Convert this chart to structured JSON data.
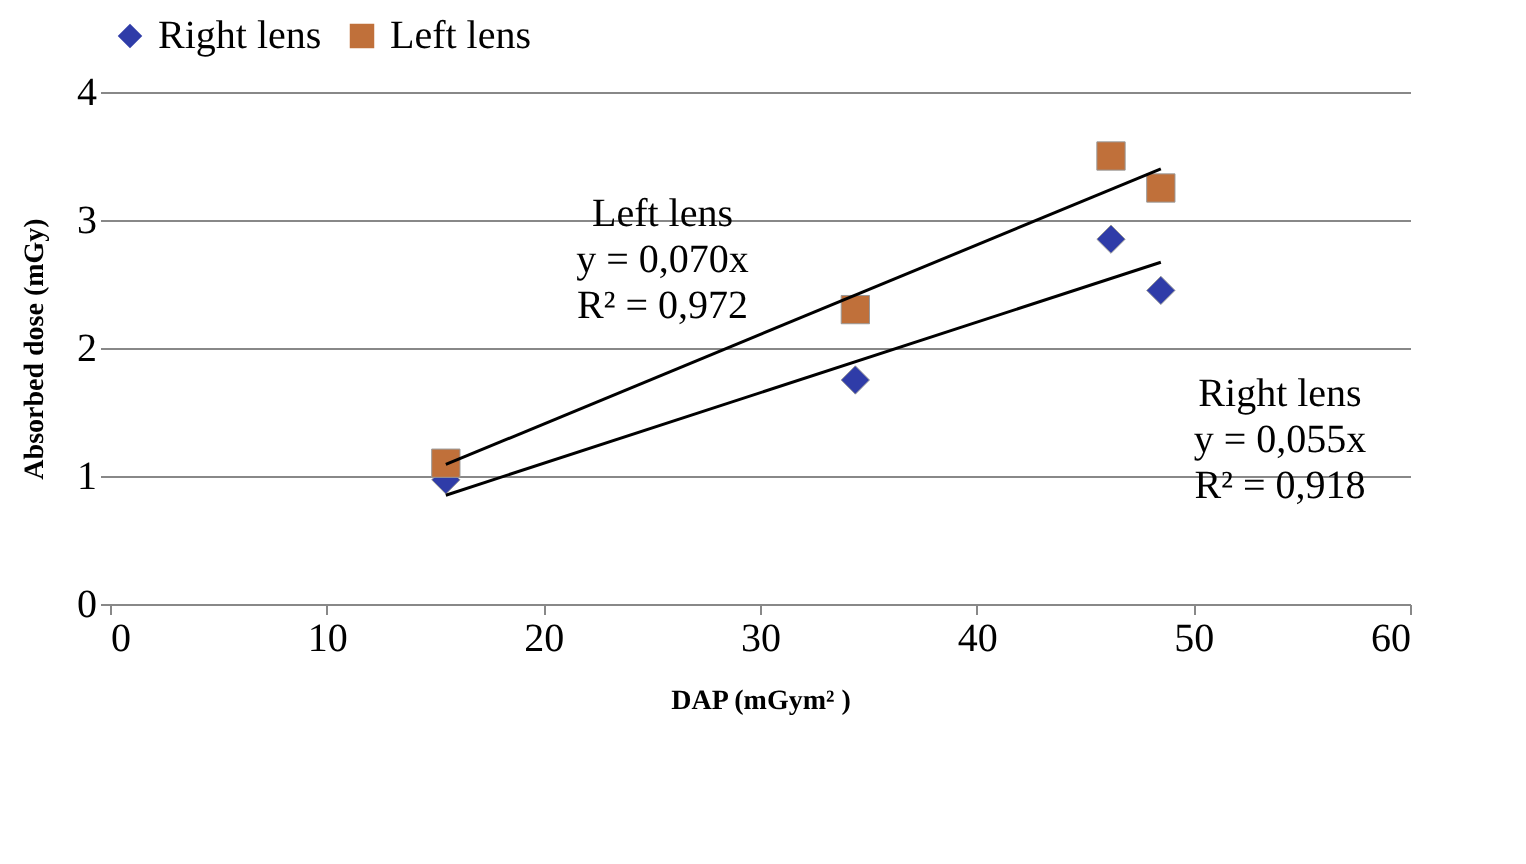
{
  "chart_data": {
    "type": "scatter",
    "xlabel": "DAP (mGym² )",
    "ylabel": "Absorbed dose (mGy)",
    "xlim": [
      0,
      60
    ],
    "xticks": [
      0,
      10,
      20,
      30,
      40,
      50,
      60
    ],
    "ylim": [
      0,
      4
    ],
    "yticks": [
      0,
      1,
      2,
      3,
      4
    ],
    "grid": "y",
    "legend": "top",
    "series": [
      {
        "name": "Right lens",
        "color": "#2f3ca8",
        "marker": "diamond",
        "x": [
          15.5,
          34.4,
          46.2,
          48.5
        ],
        "values": [
          0.97,
          1.75,
          2.85,
          2.45
        ]
      },
      {
        "name": "Left lens",
        "color": "#c0703a",
        "marker": "square",
        "x": [
          15.5,
          34.4,
          46.2,
          48.5
        ],
        "values": [
          1.1,
          2.3,
          3.5,
          3.25
        ]
      },
      {
        "type": "line",
        "color": "#000000",
        "x": [
          15.5,
          48.5
        ],
        "values": [
          1.09,
          3.4
        ]
      },
      {
        "type": "line",
        "color": "#000000",
        "x": [
          15.5,
          48.5
        ],
        "values": [
          0.85,
          2.67
        ]
      }
    ],
    "annotations": [
      "Left lens\ny = 0,070x\nR² = 0,972",
      "Right lens\ny = 0,055x\nR² = 0,918"
    ]
  }
}
